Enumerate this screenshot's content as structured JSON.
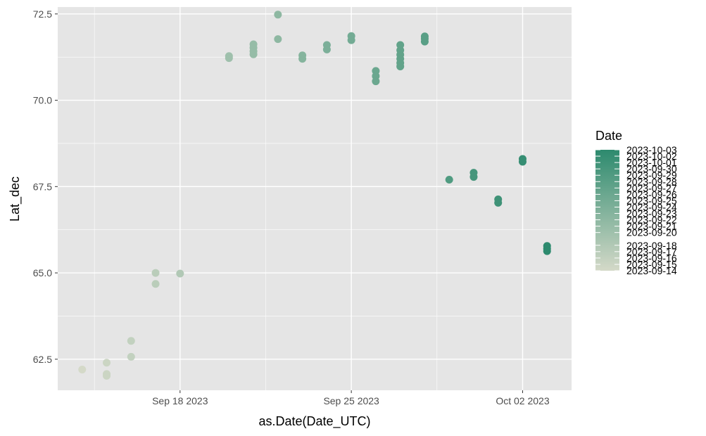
{
  "chart_data": {
    "type": "scatter",
    "title": "",
    "xlabel": "as.Date(Date_UTC)",
    "ylabel": "Lat_dec",
    "x_type": "date",
    "xlim": [
      "2023-09-13",
      "2023-10-04"
    ],
    "ylim": [
      61.6,
      72.7
    ],
    "x_ticks": [
      "2023-09-18",
      "2023-09-25",
      "2023-10-02"
    ],
    "x_tick_labels": [
      "Sep 18 2023",
      "Sep 25 2023",
      "Oct 02 2023"
    ],
    "y_ticks": [
      62.5,
      65.0,
      67.5,
      70.0,
      72.5
    ],
    "y_tick_labels": [
      "62.5",
      "65.0",
      "67.5",
      "70.0",
      "72.5"
    ],
    "grid": true,
    "panel_background": "#e5e5e5",
    "gridline_color": "#ffffff",
    "color_low": "#d4d9c8",
    "color_high": "#2d8a6e",
    "legend": {
      "title": "Date",
      "placement": "right",
      "range": [
        "2023-09-14",
        "2023-10-03"
      ],
      "labels": [
        "2023-10-03",
        "2023-10-02",
        "2023-10-01",
        "2023-09-30",
        "2023-09-29",
        "2023-09-28",
        "2023-09-27",
        "2023-09-26",
        "2023-09-25",
        "2023-09-24",
        "2023-09-23",
        "2023-09-22",
        "2023-09-21",
        "2023-09-20",
        "2023-09-18",
        "2023-09-17",
        "2023-09-16",
        "2023-09-15",
        "2023-09-14"
      ]
    },
    "points": [
      {
        "x": "2023-09-14",
        "y": 62.2
      },
      {
        "x": "2023-09-15",
        "y": 62.4
      },
      {
        "x": "2023-09-15",
        "y": 62.02
      },
      {
        "x": "2023-09-15",
        "y": 62.07
      },
      {
        "x": "2023-09-16",
        "y": 63.03
      },
      {
        "x": "2023-09-16",
        "y": 62.57
      },
      {
        "x": "2023-09-17",
        "y": 65.0
      },
      {
        "x": "2023-09-17",
        "y": 64.68
      },
      {
        "x": "2023-09-18",
        "y": 64.98
      },
      {
        "x": "2023-09-20",
        "y": 71.28
      },
      {
        "x": "2023-09-20",
        "y": 71.22
      },
      {
        "x": "2023-09-21",
        "y": 71.62
      },
      {
        "x": "2023-09-21",
        "y": 71.52
      },
      {
        "x": "2023-09-21",
        "y": 71.42
      },
      {
        "x": "2023-09-21",
        "y": 71.33
      },
      {
        "x": "2023-09-22",
        "y": 72.48
      },
      {
        "x": "2023-09-22",
        "y": 71.77
      },
      {
        "x": "2023-09-23",
        "y": 71.3
      },
      {
        "x": "2023-09-23",
        "y": 71.2
      },
      {
        "x": "2023-09-24",
        "y": 71.6
      },
      {
        "x": "2023-09-24",
        "y": 71.47
      },
      {
        "x": "2023-09-25",
        "y": 71.86
      },
      {
        "x": "2023-09-25",
        "y": 71.74
      },
      {
        "x": "2023-09-26",
        "y": 70.85
      },
      {
        "x": "2023-09-26",
        "y": 70.7
      },
      {
        "x": "2023-09-26",
        "y": 70.55
      },
      {
        "x": "2023-09-27",
        "y": 71.6
      },
      {
        "x": "2023-09-27",
        "y": 71.45
      },
      {
        "x": "2023-09-27",
        "y": 71.32
      },
      {
        "x": "2023-09-27",
        "y": 71.2
      },
      {
        "x": "2023-09-27",
        "y": 71.08
      },
      {
        "x": "2023-09-27",
        "y": 70.98
      },
      {
        "x": "2023-09-28",
        "y": 71.85
      },
      {
        "x": "2023-09-28",
        "y": 71.78
      },
      {
        "x": "2023-09-28",
        "y": 71.7
      },
      {
        "x": "2023-09-29",
        "y": 67.7
      },
      {
        "x": "2023-09-30",
        "y": 67.9
      },
      {
        "x": "2023-09-30",
        "y": 67.78
      },
      {
        "x": "2023-10-01",
        "y": 67.13
      },
      {
        "x": "2023-10-01",
        "y": 67.03
      },
      {
        "x": "2023-10-02",
        "y": 68.3
      },
      {
        "x": "2023-10-02",
        "y": 68.22
      },
      {
        "x": "2023-10-03",
        "y": 65.78
      },
      {
        "x": "2023-10-03",
        "y": 65.7
      },
      {
        "x": "2023-10-03",
        "y": 65.63
      }
    ]
  }
}
